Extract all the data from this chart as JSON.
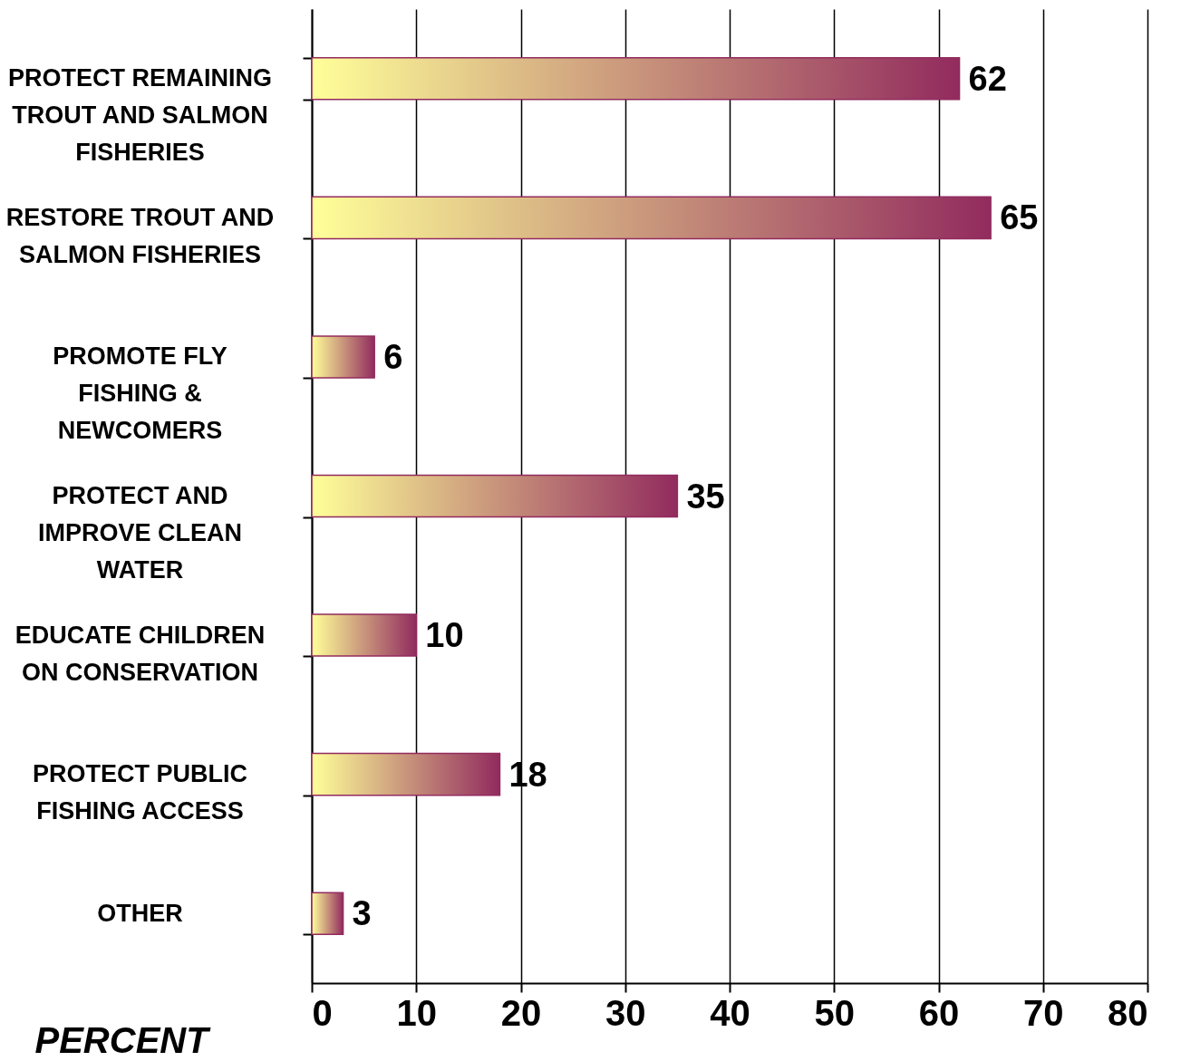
{
  "chart_data": {
    "type": "bar",
    "orientation": "horizontal",
    "xlabel": "PERCENT",
    "categories": [
      "PROTECT REMAINING TROUT AND SALMON FISHERIES",
      "RESTORE TROUT AND SALMON FISHERIES",
      "PROMOTE FLY FISHING & NEWCOMERS",
      "PROTECT AND IMPROVE CLEAN WATER",
      "EDUCATE CHILDREN ON CONSERVATION",
      "PROTECT PUBLIC FISHING ACCESS",
      "OTHER"
    ],
    "series": [
      {
        "color": "#922b5e",
        "values": [
          62,
          65,
          6,
          35,
          10,
          18,
          3
        ]
      }
    ],
    "xlim": [
      0,
      80
    ],
    "xticks": [
      0,
      10,
      20,
      30,
      40,
      50,
      60,
      70,
      80
    ],
    "grid": "x",
    "data_labels": true
  }
}
